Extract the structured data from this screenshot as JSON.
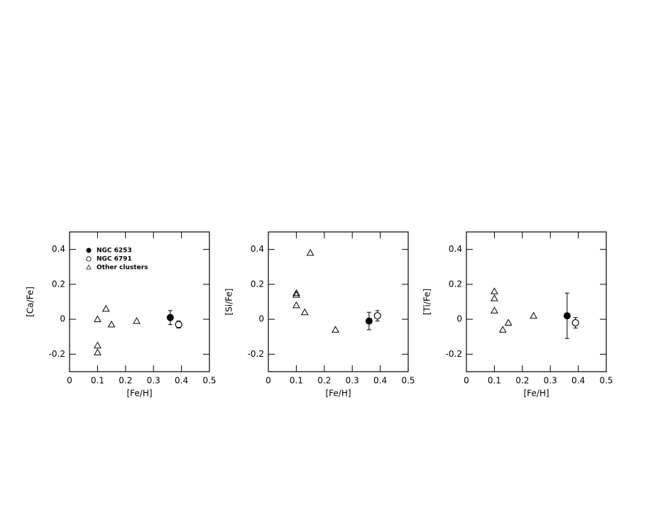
{
  "chart_data": [
    {
      "type": "scatter",
      "xlabel": "[Fe/H]",
      "ylabel": "[Ca/Fe]",
      "xlim": [
        0,
        0.5
      ],
      "ylim": [
        -0.3,
        0.5
      ],
      "xticks": [
        0,
        0.1,
        0.2,
        0.3,
        0.4,
        0.5
      ],
      "yticks": [
        -0.2,
        0,
        0.2,
        0.4
      ],
      "legend": "upper left",
      "series": [
        {
          "name": "NGC 6253",
          "marker": "filled-circle",
          "color": "#000000",
          "x": [
            0.36
          ],
          "values": [
            0.01
          ],
          "errors": [
            0.04
          ]
        },
        {
          "name": "NGC 6791",
          "marker": "open-circle",
          "color": "#000000",
          "x": [
            0.39
          ],
          "values": [
            -0.03
          ],
          "errors": [
            0.02
          ]
        },
        {
          "name": "Other clusters",
          "marker": "open-triangle",
          "color": "#000000",
          "x": [
            0.1,
            0.13,
            0.15,
            0.24,
            0.1,
            0.1
          ],
          "values": [
            0.0,
            0.06,
            -0.03,
            -0.01,
            -0.15,
            -0.19
          ]
        }
      ]
    },
    {
      "type": "scatter",
      "xlabel": "[Fe/H]",
      "ylabel": "[Si/Fe]",
      "xlim": [
        0,
        0.5
      ],
      "ylim": [
        -0.3,
        0.5
      ],
      "xticks": [
        0,
        0.1,
        0.2,
        0.3,
        0.4,
        0.5
      ],
      "yticks": [
        -0.2,
        0,
        0.2,
        0.4
      ],
      "series": [
        {
          "marker": "filled-circle",
          "color": "#000000",
          "x": [
            0.36
          ],
          "values": [
            -0.01
          ],
          "errors": [
            0.05
          ]
        },
        {
          "marker": "open-circle",
          "color": "#000000",
          "x": [
            0.39
          ],
          "values": [
            0.02
          ],
          "errors": [
            0.03
          ]
        },
        {
          "marker": "open-triangle",
          "color": "#000000",
          "x": [
            0.1,
            0.1,
            0.1,
            0.13,
            0.15,
            0.24
          ],
          "values": [
            0.15,
            0.14,
            0.08,
            0.04,
            0.38,
            -0.06
          ]
        }
      ]
    },
    {
      "type": "scatter",
      "xlabel": "[Fe/H]",
      "ylabel": "[Ti/Fe]",
      "xlim": [
        0,
        0.5
      ],
      "ylim": [
        -0.3,
        0.5
      ],
      "xticks": [
        0,
        0.1,
        0.2,
        0.3,
        0.4,
        0.5
      ],
      "yticks": [
        -0.2,
        0,
        0.2,
        0.4
      ],
      "series": [
        {
          "marker": "filled-circle",
          "color": "#000000",
          "x": [
            0.36
          ],
          "values": [
            0.02
          ],
          "errors": [
            0.13
          ]
        },
        {
          "marker": "open-circle",
          "color": "#000000",
          "x": [
            0.39
          ],
          "values": [
            -0.02
          ],
          "errors": [
            0.03
          ]
        },
        {
          "marker": "open-triangle",
          "color": "#000000",
          "x": [
            0.1,
            0.1,
            0.1,
            0.13,
            0.15,
            0.24
          ],
          "values": [
            0.16,
            0.12,
            0.05,
            -0.06,
            -0.02,
            0.02
          ]
        }
      ]
    }
  ]
}
